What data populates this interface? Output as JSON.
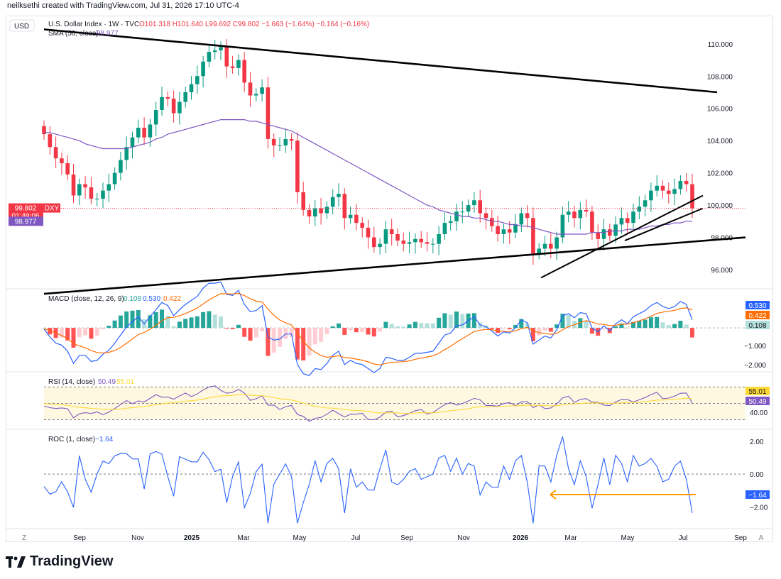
{
  "header": {
    "attribution": "neilksethi created with TradingView.com, Jul 31, 2026 17:10 UTC-4"
  },
  "symbol": {
    "currency": "USD",
    "name": "U.S. Dollar Index · 1W · TVC",
    "ohlc_text": "O101.318  H101.640  L99.692  C99.802  −1.663 (−1.64%)  −0.164 (−0.16%)",
    "ticker": "DXY",
    "last_price": "99.802",
    "countdown": "01:49:06"
  },
  "sma": {
    "label": "SMA (50, close)",
    "value": "98.977"
  },
  "macd": {
    "label": "MACD (close, 12, 26, 9)",
    "hist": "0.108",
    "macd": "0.530",
    "signal": "0.422"
  },
  "rsi": {
    "label": "RSI (14, close)",
    "rsi": "50.49",
    "ma": "55.01"
  },
  "roc": {
    "label": "ROC (1, close)",
    "value": "−1.64"
  },
  "footer": {
    "brand": "TradingView"
  },
  "time_axis": {
    "labels": [
      "Sep",
      "Nov",
      "2025",
      "Mar",
      "May",
      "Jul",
      "Sep",
      "Nov",
      "2026",
      "Mar",
      "May",
      "Jul",
      "Sep"
    ],
    "left_mark": "Z",
    "right_mark": "A"
  },
  "chart_data": {
    "type": "candlestick",
    "title": "U.S. Dollar Index · 1W · TVC",
    "price_axis": {
      "ticks": [
        "110.000",
        "108.000",
        "106.000",
        "104.000",
        "102.000",
        "100.000",
        "98.000",
        "96.000"
      ],
      "ylim": [
        94.9,
        111.4
      ]
    },
    "close": [
      104.4,
      103.6,
      102.9,
      102.6,
      101.9,
      100.6,
      101.3,
      101.1,
      100.4,
      100.4,
      100.9,
      101.3,
      102.0,
      102.8,
      103.6,
      104.2,
      104.8,
      104.2,
      105.0,
      105.9,
      106.7,
      106.6,
      105.7,
      106.4,
      107.0,
      107.5,
      108.0,
      108.9,
      109.5,
      109.6,
      109.8,
      108.6,
      108.5,
      109.0,
      107.6,
      106.8,
      106.9,
      107.3,
      104.1,
      103.7,
      103.7,
      104.1,
      104.0,
      100.8,
      99.7,
      99.3,
      99.8,
      99.5,
      99.9,
      100.5,
      100.7,
      99.2,
      99.4,
      98.9,
      98.6,
      98.0,
      97.4,
      97.6,
      98.5,
      98.2,
      97.8,
      97.6,
      97.7,
      97.9,
      97.7,
      97.6,
      97.6,
      98.2,
      98.9,
      99.0,
      99.6,
      99.6,
      100.0,
      100.3,
      99.5,
      99.2,
      98.7,
      98.2,
      98.5,
      98.3,
      98.8,
      99.5,
      99.2,
      97.0,
      97.3,
      97.6,
      97.3,
      98.0,
      99.4,
      99.6,
      99.2,
      99.7,
      99.6,
      98.3,
      97.9,
      98.5,
      98.1,
      98.8,
      99.2,
      98.9,
      99.6,
      99.9,
      100.3,
      100.9,
      101.2,
      100.9,
      100.7,
      101.0,
      101.5,
      101.3,
      99.8
    ],
    "sma50": [
      104.5,
      104.5,
      104.4,
      104.3,
      104.2,
      104.1,
      104.0,
      103.8,
      103.7,
      103.6,
      103.5,
      103.5,
      103.5,
      103.5,
      103.5,
      103.6,
      103.7,
      103.8,
      103.9,
      104.1,
      104.2,
      104.4,
      104.5,
      104.6,
      104.7,
      104.8,
      104.9,
      105.0,
      105.1,
      105.2,
      105.3,
      105.3,
      105.3,
      105.3,
      105.3,
      105.2,
      105.2,
      105.1,
      105.0,
      104.9,
      104.8,
      104.7,
      104.6,
      104.4,
      104.2,
      104.0,
      103.8,
      103.6,
      103.4,
      103.2,
      103.0,
      102.8,
      102.6,
      102.4,
      102.2,
      102.0,
      101.8,
      101.6,
      101.4,
      101.2,
      101.0,
      100.8,
      100.6,
      100.4,
      100.2,
      100.0,
      99.9,
      99.7,
      99.6,
      99.5,
      99.4,
      99.3,
      99.3,
      99.2,
      99.2,
      99.1,
      99.0,
      99.0,
      98.9,
      98.8,
      98.8,
      98.7,
      98.7,
      98.6,
      98.5,
      98.4,
      98.3,
      98.2,
      98.2,
      98.2,
      98.2,
      98.2,
      98.2,
      98.3,
      98.3,
      98.3,
      98.4,
      98.4,
      98.4,
      98.5,
      98.5,
      98.5,
      98.6,
      98.7,
      98.7,
      98.8,
      98.8,
      98.9,
      98.9,
      99.0,
      99.0
    ],
    "trendlines": [
      {
        "from": [
          "2024-08",
          110.9
        ],
        "to": [
          "2026-08",
          107.0
        ]
      },
      {
        "from": [
          "2024-08",
          94.5
        ],
        "to": [
          "2026-09",
          98.0
        ]
      },
      {
        "from": [
          "2026-01",
          95.5
        ],
        "to": [
          "2026-07",
          100.6
        ]
      },
      {
        "from": [
          "2026-04",
          97.8
        ],
        "to": [
          "2026-07",
          99.8
        ]
      }
    ],
    "macd_axis": {
      "ticks": [
        "−1.000",
        "−2.000"
      ],
      "ylim": [
        -2.3,
        2.0
      ]
    },
    "rsi_axis": {
      "ticks": [
        "40.00"
      ],
      "ylim": [
        20,
        86
      ],
      "bands": [
        70,
        50,
        30
      ]
    },
    "roc_axis": {
      "ticks": [
        "2.00",
        "0.00",
        "−2.00"
      ],
      "ylim": [
        -3.2,
        2.6
      ]
    }
  }
}
